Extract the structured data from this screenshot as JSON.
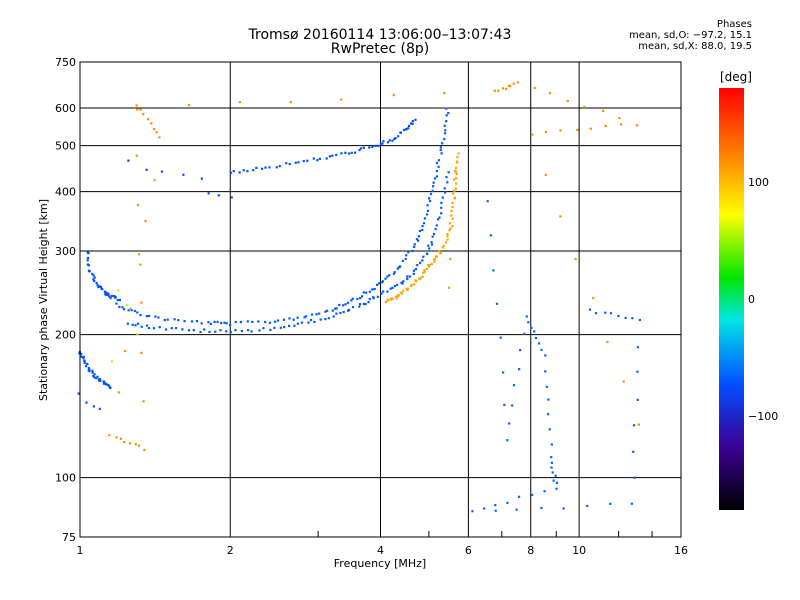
{
  "header": {
    "title": "Tromsø 20160114 13:06:00–13:07:43",
    "subtitle": "RwPretec (8p)"
  },
  "phase_info": {
    "heading": "Phases",
    "line_o": "mean, sd,O: −97.2, 15.1",
    "line_x": "mean, sd,X:  88.0, 19.5"
  },
  "colorbar": {
    "unit": "[deg]",
    "ticks": [
      {
        "value": 100,
        "label": "100"
      },
      {
        "value": 0,
        "label": "0"
      },
      {
        "value": -100,
        "label": "−100"
      }
    ],
    "range": [
      -180,
      180
    ]
  },
  "chart_data": {
    "type": "scatter",
    "title": "Tromsø 20160114 13:06:00–13:07:43",
    "subtitle": "RwPretec (8p)",
    "xlabel": "Frequency [MHz]",
    "ylabel": "Stationary phase Virtual Height [km]",
    "x_scale": "log",
    "y_scale": "log",
    "xlim": [
      1,
      16
    ],
    "ylim": [
      75,
      750
    ],
    "xticks": [
      1,
      2,
      4,
      6,
      8,
      10,
      16
    ],
    "xtick_labels": [
      "1",
      "2",
      "4",
      "6",
      "8",
      "10",
      "16"
    ],
    "yticks": [
      75,
      100,
      200,
      300,
      400,
      500,
      600,
      750
    ],
    "ytick_labels": [
      "75",
      "100",
      "200",
      "300",
      "400",
      "500",
      "600",
      "750"
    ],
    "grid": true,
    "color_by": "phase [deg]",
    "traces": [
      {
        "points": [
          [
            1.18,
            232
          ],
          [
            1.3,
            222
          ],
          [
            1.5,
            215
          ],
          [
            1.8,
            212
          ],
          [
            2.0,
            211
          ],
          [
            2.4,
            213
          ],
          [
            2.8,
            218
          ],
          [
            3.2,
            226
          ],
          [
            3.5,
            236
          ],
          [
            3.8,
            247
          ],
          [
            4.1,
            262
          ],
          [
            4.4,
            280
          ],
          [
            4.7,
            310
          ],
          [
            4.9,
            345
          ],
          [
            5.05,
            395
          ],
          [
            5.2,
            450
          ],
          [
            5.35,
            520
          ],
          [
            5.45,
            600
          ]
        ],
        "phase": -95
      },
      {
        "points": [
          [
            1.25,
            212
          ],
          [
            1.4,
            207
          ],
          [
            1.7,
            204
          ],
          [
            2.0,
            203
          ],
          [
            2.4,
            206
          ],
          [
            2.8,
            211
          ],
          [
            3.2,
            219
          ],
          [
            3.6,
            229
          ],
          [
            3.9,
            240
          ],
          [
            4.3,
            252
          ],
          [
            4.6,
            266
          ],
          [
            4.9,
            290
          ],
          [
            5.1,
            320
          ],
          [
            5.3,
            370
          ],
          [
            5.45,
            440
          ]
        ],
        "phase": -95
      },
      {
        "points": [
          [
            1.03,
            300
          ],
          [
            1.05,
            270
          ],
          [
            1.08,
            255
          ],
          [
            1.12,
            245
          ],
          [
            1.15,
            240
          ],
          [
            1.2,
            238
          ]
        ],
        "phase": -100
      },
      {
        "points": [
          [
            1.0,
            185
          ],
          [
            1.02,
            175
          ],
          [
            1.05,
            168
          ],
          [
            1.08,
            162
          ],
          [
            1.12,
            158
          ],
          [
            1.15,
            155
          ]
        ],
        "phase": -100
      },
      {
        "points": [
          [
            1.0,
            150
          ],
          [
            1.03,
            145
          ],
          [
            1.06,
            142
          ],
          [
            1.1,
            140
          ]
        ],
        "phase": -100
      },
      {
        "points": [
          [
            1.25,
            465
          ],
          [
            1.35,
            448
          ],
          [
            1.45,
            438
          ],
          [
            1.6,
            432
          ],
          [
            1.75,
            428
          ]
        ],
        "phase": -100
      },
      {
        "points": [
          [
            1.8,
            398
          ],
          [
            1.9,
            392
          ],
          [
            2.0,
            390
          ]
        ],
        "phase": -100
      },
      {
        "points": [
          [
            2.0,
            440
          ],
          [
            2.3,
            448
          ],
          [
            2.7,
            460
          ],
          [
            3.1,
            472
          ],
          [
            3.5,
            485
          ],
          [
            3.9,
            498
          ],
          [
            4.2,
            515
          ],
          [
            4.5,
            540
          ],
          [
            4.7,
            565
          ]
        ],
        "phase": -100
      },
      {
        "points": [
          [
            4.1,
            235
          ],
          [
            4.3,
            240
          ],
          [
            4.5,
            248
          ],
          [
            4.7,
            258
          ],
          [
            4.9,
            270
          ],
          [
            5.1,
            285
          ],
          [
            5.3,
            300
          ],
          [
            5.5,
            330
          ],
          [
            5.6,
            380
          ],
          [
            5.65,
            430
          ],
          [
            5.7,
            480
          ]
        ],
        "phase": 110
      },
      {
        "points": [
          [
            5.5,
            250
          ],
          [
            5.55,
            290
          ],
          [
            5.6,
            340
          ],
          [
            5.62,
            390
          ],
          [
            5.65,
            440
          ]
        ],
        "phase": 115
      },
      {
        "points": [
          [
            6.6,
            380
          ],
          [
            7.2,
            120
          ],
          [
            7.8,
            220
          ],
          [
            8.5,
            180
          ],
          [
            8.8,
            110
          ],
          [
            9.0,
            95
          ],
          [
            6.1,
            85
          ],
          [
            12.8,
            88
          ],
          [
            13.2,
            215
          ],
          [
            10.5,
            225
          ]
        ],
        "phase": -90
      },
      {
        "points": [
          [
            1.3,
            610
          ],
          [
            1.45,
            520
          ],
          [
            1.15,
            123
          ],
          [
            1.35,
            115
          ],
          [
            1.3,
            600
          ],
          [
            6.8,
            650
          ],
          [
            7.5,
            680
          ],
          [
            13.0,
            555
          ],
          [
            8.0,
            530
          ],
          [
            13.1,
            130
          ]
        ],
        "phase": 120
      },
      {
        "points": [
          [
            1.3,
            200
          ],
          [
            1.25,
            230
          ],
          [
            1.15,
            175
          ],
          [
            1.2,
            248
          ]
        ],
        "phase": 50
      }
    ]
  }
}
